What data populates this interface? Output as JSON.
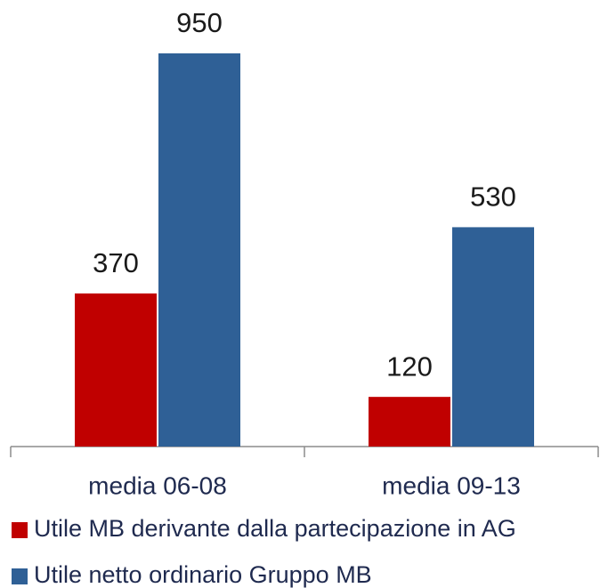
{
  "chart_data": {
    "type": "bar",
    "categories": [
      "media 06-08",
      "media 09-13"
    ],
    "series": [
      {
        "name": "Utile MB derivante dalla partecipazione in AG",
        "color": "#c00000",
        "values": [
          370,
          120
        ]
      },
      {
        "name": "Utile netto ordinario Gruppo MB",
        "color": "#2f6096",
        "values": [
          950,
          530
        ]
      }
    ],
    "legend": "bottom"
  }
}
